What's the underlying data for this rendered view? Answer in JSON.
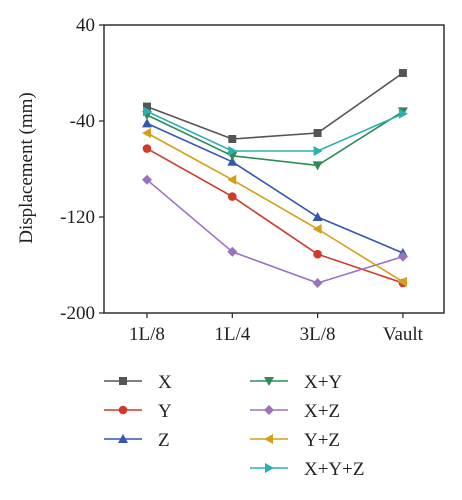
{
  "chart_data": {
    "type": "line",
    "title": "",
    "xlabel": "",
    "ylabel": "Displacement (mm)",
    "categories": [
      "1L/8",
      "1L/4",
      "3L/8",
      "Vault"
    ],
    "ylim": [
      -200,
      40
    ],
    "yticks": [
      40,
      -40,
      -120,
      -200
    ],
    "grid": false,
    "legend_position": "bottom",
    "series": [
      {
        "name": "X",
        "values": [
          -28,
          -55,
          -50,
          0
        ],
        "color": "#555555",
        "marker": "square"
      },
      {
        "name": "Y",
        "values": [
          -63,
          -103,
          -151,
          -175
        ],
        "color": "#d1392b",
        "marker": "circle"
      },
      {
        "name": "Z",
        "values": [
          -42,
          -74,
          -120,
          -150
        ],
        "color": "#3456b3",
        "marker": "triangle-up"
      },
      {
        "name": "X+Y",
        "values": [
          -35,
          -69,
          -77,
          -32
        ],
        "color": "#2e8b57",
        "marker": "triangle-down"
      },
      {
        "name": "X+Z",
        "values": [
          -89,
          -149,
          -175,
          -153
        ],
        "color": "#9b72c0",
        "marker": "diamond"
      },
      {
        "name": "Y+Z",
        "values": [
          -50,
          -89,
          -130,
          -174
        ],
        "color": "#d4a017",
        "marker": "triangle-left"
      },
      {
        "name": "X+Y+Z",
        "values": [
          -32,
          -65,
          -65,
          -34
        ],
        "color": "#2ab0b0",
        "marker": "triangle-right"
      }
    ]
  }
}
